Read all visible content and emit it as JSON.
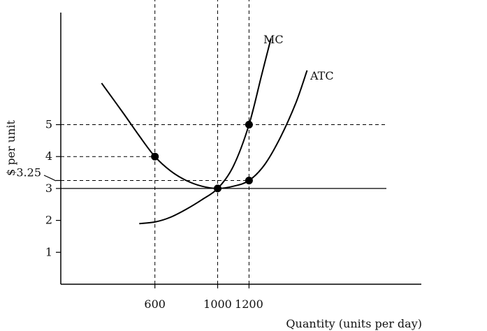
{
  "chart_data": {
    "type": "line",
    "title": "",
    "xlabel": "Quantity (units per day)",
    "ylabel": "$ per unit",
    "xlim": [
      0,
      1600
    ],
    "ylim": [
      0,
      8
    ],
    "x_ticks": [
      600,
      1000,
      1200
    ],
    "x_tick_labels": [
      "600",
      "1000",
      "1200"
    ],
    "y_ticks": [
      1,
      2,
      3,
      3.25,
      4,
      5
    ],
    "y_tick_labels": [
      "1",
      "2",
      "3",
      "3.25",
      "4",
      "5"
    ],
    "grid": false,
    "series": [
      {
        "name": "MC",
        "x": [
          500,
          600,
          700,
          800,
          900,
          1000,
          1100,
          1200,
          1280,
          1340
        ],
        "y": [
          1.9,
          1.95,
          2.1,
          2.35,
          2.65,
          3,
          3.7,
          5,
          6.55,
          7.7
        ]
      },
      {
        "name": "ATC",
        "x": [
          260,
          400,
          500,
          600,
          700,
          800,
          900,
          1000,
          1100,
          1200,
          1300,
          1400,
          1500,
          1570
        ],
        "y": [
          6.3,
          5.35,
          4.65,
          4,
          3.55,
          3.25,
          3.07,
          3,
          3.07,
          3.25,
          3.75,
          4.6,
          5.7,
          6.7
        ]
      }
    ],
    "points": [
      {
        "x": 600,
        "y": 4
      },
      {
        "x": 1000,
        "y": 3
      },
      {
        "x": 1200,
        "y": 5
      },
      {
        "x": 1200,
        "y": 3.25
      }
    ],
    "reference_lines": {
      "horizontal": [
        {
          "y": 5,
          "x_to": 2100,
          "style": "dashed"
        },
        {
          "y": 4,
          "x_to": 600,
          "style": "dashed"
        },
        {
          "y": 3.25,
          "x_to": 1200,
          "style": "dashed"
        },
        {
          "y": 3,
          "x_to": 2100,
          "style": "solid"
        }
      ],
      "vertical": [
        {
          "x": 600,
          "y_to": 4,
          "style": "dashed"
        },
        {
          "x": 1000,
          "y_to": 5,
          "style": "dashed"
        },
        {
          "x": 1200,
          "y_to": 5,
          "style": "dashed"
        }
      ]
    }
  }
}
